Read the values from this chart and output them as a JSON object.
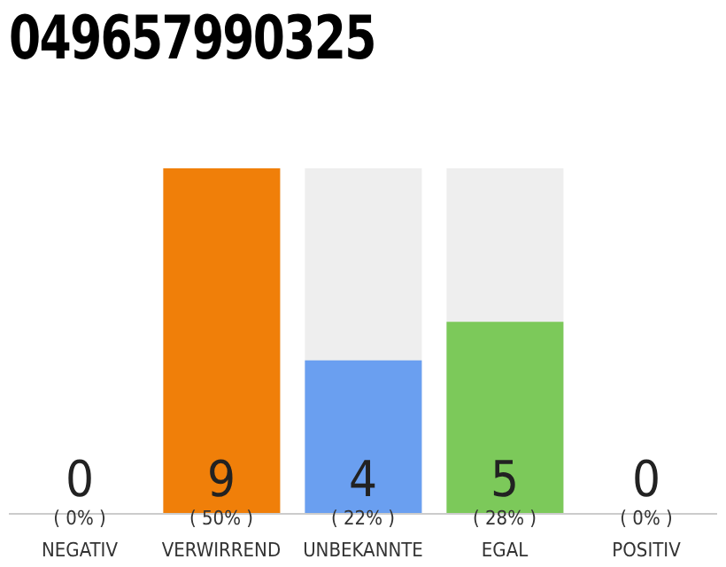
{
  "chart_data": {
    "type": "bar",
    "title": "049657990325",
    "categories": [
      "NEGATIV",
      "VERWIRREND",
      "UNBEKANNTE",
      "EGAL",
      "POSITIV"
    ],
    "values": [
      0,
      9,
      4,
      5,
      0
    ],
    "colors": [
      "#e05a4f",
      "#f07f09",
      "#6a9ff0",
      "#7cc95a",
      "#4caf50"
    ],
    "data_labels": true,
    "annotations": [
      "( 0% )",
      "( 50% )",
      "( 22% )",
      "( 28% )",
      "( 0% )"
    ],
    "grid": false,
    "legend": false
  }
}
